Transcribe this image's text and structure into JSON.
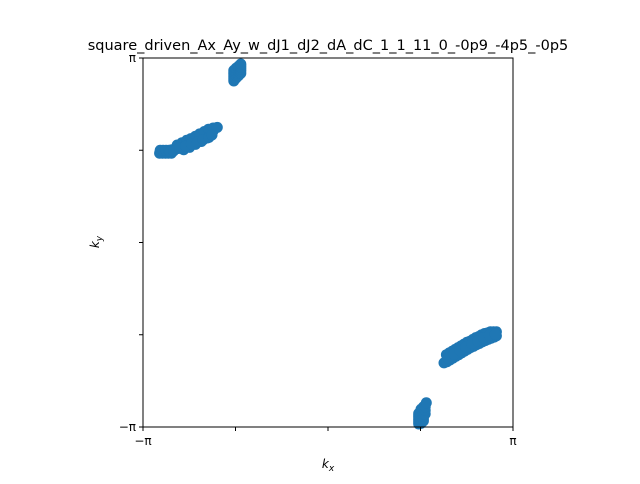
{
  "chart_data": {
    "type": "scatter",
    "title": "square_driven_Ax_Ay_w_dJ1_dJ2_dA_dC_1_1_11_0_-0p9_-4p5_-0p5",
    "xlabel": {
      "base": "k",
      "sub": "x"
    },
    "ylabel": {
      "base": "k",
      "sub": "y"
    },
    "xlim": [
      -3.14159,
      3.14159
    ],
    "ylim": [
      -3.14159,
      3.14159
    ],
    "x_ticks": [
      {
        "value": -3.14159,
        "label": "−π"
      },
      {
        "value": -1.5708,
        "label": ""
      },
      {
        "value": 0,
        "label": ""
      },
      {
        "value": 1.5708,
        "label": ""
      },
      {
        "value": 3.14159,
        "label": "π"
      }
    ],
    "y_ticks": [
      {
        "value": -3.14159,
        "label": "−π"
      },
      {
        "value": -1.5708,
        "label": ""
      },
      {
        "value": 0,
        "label": ""
      },
      {
        "value": 1.5708,
        "label": ""
      },
      {
        "value": 3.14159,
        "label": "π"
      }
    ],
    "grid": false,
    "marker_color": "#1f77b4",
    "series": [
      {
        "points": [
          [
            -2.86,
            1.52
          ],
          [
            -2.81,
            1.52
          ],
          [
            -2.76,
            1.52
          ],
          [
            -2.71,
            1.52
          ],
          [
            -2.66,
            1.52
          ],
          [
            -2.85,
            1.57
          ],
          [
            -2.8,
            1.57
          ],
          [
            -2.75,
            1.57
          ],
          [
            -2.7,
            1.57
          ],
          [
            -2.65,
            1.58
          ],
          [
            -2.6,
            1.59
          ],
          [
            -2.58,
            1.61
          ],
          [
            -2.54,
            1.6
          ],
          [
            -2.5,
            1.63
          ],
          [
            -2.45,
            1.65
          ],
          [
            -2.4,
            1.67
          ],
          [
            -2.35,
            1.7
          ],
          [
            -2.3,
            1.72
          ],
          [
            -2.25,
            1.75
          ],
          [
            -2.2,
            1.77
          ],
          [
            -2.15,
            1.8
          ],
          [
            -2.1,
            1.83
          ],
          [
            -2.05,
            1.85
          ],
          [
            -2.0,
            1.88
          ],
          [
            -1.95,
            1.9
          ],
          [
            -2.56,
            1.66
          ],
          [
            -2.48,
            1.7
          ],
          [
            -2.4,
            1.74
          ],
          [
            -2.33,
            1.77
          ],
          [
            -2.25,
            1.81
          ],
          [
            -2.18,
            1.85
          ],
          [
            -2.1,
            1.89
          ],
          [
            -2.03,
            1.93
          ],
          [
            -1.95,
            1.95
          ],
          [
            -1.88,
            1.96
          ],
          [
            -2.45,
            1.58
          ],
          [
            -2.35,
            1.62
          ],
          [
            -2.25,
            1.67
          ],
          [
            -2.15,
            1.72
          ],
          [
            -2.05,
            1.78
          ],
          [
            -2.68,
            1.55
          ],
          [
            -2.62,
            1.56
          ],
          [
            -2.52,
            1.61
          ],
          [
            -2.42,
            1.64
          ],
          [
            -2.32,
            1.68
          ],
          [
            -2.22,
            1.71
          ],
          [
            -2.12,
            1.75
          ],
          [
            -2.02,
            1.79
          ],
          [
            -1.97,
            1.83
          ]
        ]
      },
      {
        "points": [
          [
            -1.6,
            2.75
          ],
          [
            -1.6,
            2.78
          ],
          [
            -1.6,
            2.81
          ],
          [
            -1.6,
            2.84
          ],
          [
            -1.6,
            2.87
          ],
          [
            -1.6,
            2.9
          ],
          [
            -1.6,
            2.93
          ],
          [
            -1.56,
            2.8
          ],
          [
            -1.56,
            2.84
          ],
          [
            -1.56,
            2.88
          ],
          [
            -1.56,
            2.91
          ],
          [
            -1.56,
            2.94
          ],
          [
            -1.56,
            2.97
          ],
          [
            -1.52,
            2.84
          ],
          [
            -1.52,
            2.88
          ],
          [
            -1.52,
            2.91
          ],
          [
            -1.52,
            2.94
          ],
          [
            -1.52,
            2.97
          ],
          [
            -1.52,
            3.0
          ],
          [
            -1.48,
            2.88
          ],
          [
            -1.48,
            2.92
          ],
          [
            -1.48,
            2.95
          ],
          [
            -1.48,
            2.98
          ],
          [
            -1.48,
            3.01
          ],
          [
            -1.48,
            3.04
          ]
        ]
      },
      {
        "points": [
          [
            1.54,
            -3.09
          ],
          [
            1.54,
            -3.06
          ],
          [
            1.54,
            -3.03
          ],
          [
            1.54,
            -3.0
          ],
          [
            1.54,
            -2.97
          ],
          [
            1.54,
            -2.94
          ],
          [
            1.54,
            -2.91
          ],
          [
            1.58,
            -3.08
          ],
          [
            1.58,
            -3.04
          ],
          [
            1.58,
            -3.0
          ],
          [
            1.58,
            -2.96
          ],
          [
            1.58,
            -2.92
          ],
          [
            1.58,
            -2.88
          ],
          [
            1.58,
            -2.84
          ],
          [
            1.62,
            -3.04
          ],
          [
            1.62,
            -3.0
          ],
          [
            1.62,
            -2.96
          ],
          [
            1.62,
            -2.92
          ],
          [
            1.62,
            -2.88
          ],
          [
            1.62,
            -2.84
          ],
          [
            1.62,
            -2.8
          ],
          [
            1.65,
            -2.92
          ],
          [
            1.65,
            -2.86
          ],
          [
            1.65,
            -2.8
          ],
          [
            1.67,
            -2.73
          ]
        ]
      },
      {
        "points": [
          [
            1.97,
            -2.05
          ],
          [
            2.02,
            -2.03
          ],
          [
            2.07,
            -2.0
          ],
          [
            2.12,
            -1.97
          ],
          [
            2.17,
            -1.94
          ],
          [
            2.22,
            -1.91
          ],
          [
            2.27,
            -1.88
          ],
          [
            2.32,
            -1.85
          ],
          [
            2.37,
            -1.82
          ],
          [
            2.42,
            -1.79
          ],
          [
            2.47,
            -1.77
          ],
          [
            2.52,
            -1.74
          ],
          [
            2.57,
            -1.72
          ],
          [
            2.62,
            -1.69
          ],
          [
            2.67,
            -1.67
          ],
          [
            2.72,
            -1.65
          ],
          [
            2.77,
            -1.63
          ],
          [
            2.82,
            -1.61
          ],
          [
            2.86,
            -1.59
          ],
          [
            2.86,
            -1.52
          ],
          [
            2.81,
            -1.52
          ],
          [
            2.76,
            -1.52
          ],
          [
            2.71,
            -1.54
          ],
          [
            2.66,
            -1.55
          ],
          [
            2.61,
            -1.57
          ],
          [
            2.56,
            -1.6
          ],
          [
            2.51,
            -1.62
          ],
          [
            2.46,
            -1.65
          ],
          [
            2.41,
            -1.68
          ],
          [
            2.36,
            -1.7
          ],
          [
            2.31,
            -1.73
          ],
          [
            2.26,
            -1.76
          ],
          [
            2.21,
            -1.79
          ],
          [
            2.16,
            -1.82
          ],
          [
            2.11,
            -1.85
          ],
          [
            2.06,
            -1.88
          ],
          [
            2.01,
            -1.91
          ],
          [
            2.04,
            -1.97
          ],
          [
            2.14,
            -1.9
          ],
          [
            2.24,
            -1.84
          ],
          [
            2.34,
            -1.78
          ],
          [
            2.44,
            -1.72
          ],
          [
            2.54,
            -1.67
          ],
          [
            2.64,
            -1.62
          ],
          [
            2.74,
            -1.58
          ],
          [
            2.84,
            -1.56
          ]
        ]
      }
    ]
  }
}
